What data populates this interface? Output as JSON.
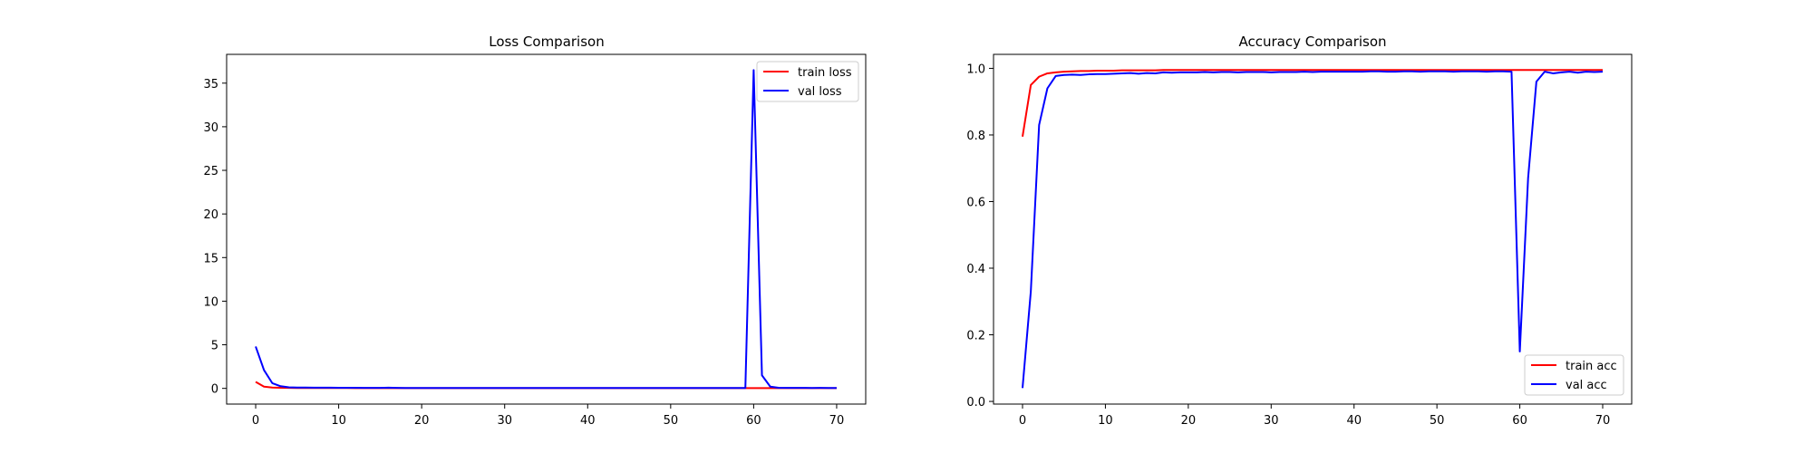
{
  "colors": {
    "train": "#ff0000",
    "val": "#0000ff",
    "axes": "#000000",
    "background": "#ffffff"
  },
  "chart_data": [
    {
      "type": "line",
      "title": "Loss Comparison",
      "xlabel": "",
      "ylabel": "",
      "xlim": [
        -3.5,
        73.5
      ],
      "ylim": [
        -1.8,
        38.3
      ],
      "xticks": [
        0,
        10,
        20,
        30,
        40,
        50,
        60,
        70
      ],
      "yticks": [
        0,
        5,
        10,
        15,
        20,
        25,
        30,
        35
      ],
      "grid": false,
      "legend_position": "upper-right",
      "x": [
        0,
        1,
        2,
        3,
        4,
        5,
        6,
        7,
        8,
        9,
        10,
        11,
        12,
        13,
        14,
        15,
        16,
        17,
        18,
        19,
        20,
        21,
        22,
        23,
        24,
        25,
        26,
        27,
        28,
        29,
        30,
        31,
        32,
        33,
        34,
        35,
        36,
        37,
        38,
        39,
        40,
        41,
        42,
        43,
        44,
        45,
        46,
        47,
        48,
        49,
        50,
        51,
        52,
        53,
        54,
        55,
        56,
        57,
        58,
        59,
        60,
        61,
        62,
        63,
        64,
        65,
        66,
        67,
        68,
        69,
        70
      ],
      "series": [
        {
          "name": "train loss",
          "color": "#ff0000",
          "values": [
            0.75,
            0.2,
            0.1,
            0.07,
            0.06,
            0.05,
            0.05,
            0.04,
            0.04,
            0.04,
            0.04,
            0.04,
            0.03,
            0.03,
            0.03,
            0.03,
            0.03,
            0.03,
            0.03,
            0.03,
            0.03,
            0.03,
            0.03,
            0.03,
            0.03,
            0.03,
            0.03,
            0.03,
            0.03,
            0.03,
            0.03,
            0.03,
            0.03,
            0.03,
            0.03,
            0.03,
            0.03,
            0.03,
            0.03,
            0.03,
            0.03,
            0.03,
            0.03,
            0.03,
            0.03,
            0.03,
            0.03,
            0.03,
            0.03,
            0.03,
            0.03,
            0.03,
            0.03,
            0.03,
            0.03,
            0.03,
            0.03,
            0.03,
            0.03,
            0.03,
            0.03,
            0.03,
            0.03,
            0.03,
            0.03,
            0.03,
            0.03,
            0.03,
            0.03,
            0.03,
            0.03
          ]
        },
        {
          "name": "val loss",
          "color": "#0000ff",
          "values": [
            4.8,
            2.1,
            0.6,
            0.25,
            0.12,
            0.1,
            0.09,
            0.08,
            0.08,
            0.08,
            0.07,
            0.07,
            0.07,
            0.06,
            0.06,
            0.06,
            0.08,
            0.06,
            0.05,
            0.05,
            0.05,
            0.05,
            0.05,
            0.05,
            0.05,
            0.05,
            0.05,
            0.05,
            0.05,
            0.05,
            0.05,
            0.05,
            0.05,
            0.05,
            0.05,
            0.05,
            0.05,
            0.05,
            0.05,
            0.05,
            0.05,
            0.05,
            0.05,
            0.05,
            0.05,
            0.05,
            0.05,
            0.05,
            0.05,
            0.05,
            0.05,
            0.05,
            0.05,
            0.05,
            0.05,
            0.05,
            0.05,
            0.05,
            0.05,
            0.05,
            36.5,
            1.5,
            0.2,
            0.07,
            0.06,
            0.06,
            0.06,
            0.05,
            0.06,
            0.05,
            0.05
          ]
        }
      ]
    },
    {
      "type": "line",
      "title": "Accuracy Comparison",
      "xlabel": "",
      "ylabel": "",
      "xlim": [
        -3.5,
        73.5
      ],
      "ylim": [
        -0.008,
        1.042
      ],
      "xticks": [
        0,
        10,
        20,
        30,
        40,
        50,
        60,
        70
      ],
      "yticks": [
        0.0,
        0.2,
        0.4,
        0.6,
        0.8,
        1.0
      ],
      "ytick_labels": [
        "0.0",
        "0.2",
        "0.4",
        "0.6",
        "0.8",
        "1.0"
      ],
      "grid": false,
      "legend_position": "lower-right",
      "x": [
        0,
        1,
        2,
        3,
        4,
        5,
        6,
        7,
        8,
        9,
        10,
        11,
        12,
        13,
        14,
        15,
        16,
        17,
        18,
        19,
        20,
        21,
        22,
        23,
        24,
        25,
        26,
        27,
        28,
        29,
        30,
        31,
        32,
        33,
        34,
        35,
        36,
        37,
        38,
        39,
        40,
        41,
        42,
        43,
        44,
        45,
        46,
        47,
        48,
        49,
        50,
        51,
        52,
        53,
        54,
        55,
        56,
        57,
        58,
        59,
        60,
        61,
        62,
        63,
        64,
        65,
        66,
        67,
        68,
        69,
        70
      ],
      "series": [
        {
          "name": "train acc",
          "color": "#ff0000",
          "values": [
            0.795,
            0.95,
            0.975,
            0.985,
            0.988,
            0.99,
            0.991,
            0.992,
            0.992,
            0.993,
            0.993,
            0.993,
            0.994,
            0.994,
            0.994,
            0.994,
            0.994,
            0.995,
            0.995,
            0.995,
            0.995,
            0.995,
            0.995,
            0.995,
            0.995,
            0.995,
            0.995,
            0.995,
            0.995,
            0.995,
            0.995,
            0.995,
            0.995,
            0.995,
            0.995,
            0.995,
            0.995,
            0.995,
            0.995,
            0.995,
            0.995,
            0.995,
            0.995,
            0.995,
            0.995,
            0.995,
            0.995,
            0.995,
            0.995,
            0.995,
            0.995,
            0.995,
            0.995,
            0.995,
            0.995,
            0.995,
            0.995,
            0.995,
            0.995,
            0.995,
            0.995,
            0.995,
            0.995,
            0.995,
            0.995,
            0.995,
            0.995,
            0.995,
            0.995,
            0.995,
            0.995
          ]
        },
        {
          "name": "val acc",
          "color": "#0000ff",
          "values": [
            0.04,
            0.33,
            0.83,
            0.94,
            0.977,
            0.98,
            0.981,
            0.98,
            0.982,
            0.983,
            0.983,
            0.984,
            0.985,
            0.986,
            0.984,
            0.986,
            0.985,
            0.988,
            0.987,
            0.988,
            0.988,
            0.988,
            0.989,
            0.988,
            0.989,
            0.989,
            0.988,
            0.989,
            0.989,
            0.989,
            0.988,
            0.989,
            0.989,
            0.989,
            0.99,
            0.989,
            0.99,
            0.99,
            0.99,
            0.99,
            0.99,
            0.99,
            0.991,
            0.991,
            0.99,
            0.99,
            0.991,
            0.991,
            0.99,
            0.991,
            0.991,
            0.991,
            0.99,
            0.991,
            0.991,
            0.991,
            0.99,
            0.991,
            0.991,
            0.99,
            0.15,
            0.67,
            0.96,
            0.99,
            0.985,
            0.988,
            0.99,
            0.987,
            0.99,
            0.989,
            0.99
          ]
        }
      ]
    }
  ]
}
